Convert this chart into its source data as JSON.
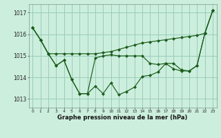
{
  "xlabel": "Graphe pression niveau de la mer (hPa)",
  "background_color": "#cceedd",
  "grid_color": "#99ccbb",
  "line_color": "#1a5c1a",
  "ylim": [
    1012.6,
    1017.4
  ],
  "yticks": [
    1013,
    1014,
    1015,
    1016,
    1017
  ],
  "xlim": [
    -0.5,
    23.5
  ],
  "series": [
    [
      1016.3,
      1015.75,
      1015.1,
      1015.1,
      1015.1,
      1015.1,
      1015.1,
      1015.1,
      1015.1,
      1015.15,
      1015.2,
      1015.3,
      1015.4,
      1015.5,
      1015.6,
      1015.65,
      1015.7,
      1015.75,
      1015.8,
      1015.85,
      1015.9,
      1015.95,
      1016.05,
      1017.1
    ],
    [
      1016.3,
      1015.75,
      1015.1,
      1014.55,
      1014.8,
      1013.9,
      1013.25,
      1013.25,
      1013.6,
      1013.25,
      1013.75,
      1013.2,
      1013.35,
      1013.55,
      1014.05,
      1014.1,
      1014.25,
      1014.65,
      1014.65,
      1014.35,
      1014.3,
      1014.55,
      1016.05,
      1017.1
    ],
    [
      1016.3,
      1015.75,
      1015.1,
      1014.55,
      1014.8,
      1013.9,
      1013.25,
      1013.25,
      1014.9,
      1015.0,
      1015.05,
      1015.0,
      1015.0,
      1015.0,
      1015.0,
      1014.65,
      1014.6,
      1014.65,
      1014.4,
      1014.3,
      1014.3,
      1014.55,
      1016.05,
      1017.1
    ]
  ]
}
